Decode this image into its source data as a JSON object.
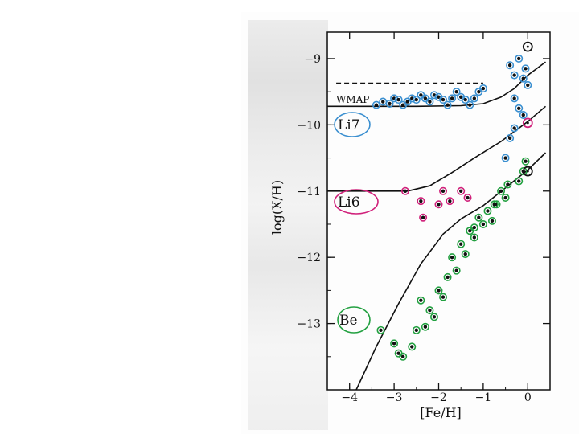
{
  "chart_data": {
    "type": "scatter",
    "ylabel": "log(X/H)",
    "xlabel": "[Fe/H]",
    "xlim": [
      -4.5,
      0.5
    ],
    "ylim": [
      -14.0,
      -8.6
    ],
    "x_ticks": [
      -4,
      -3,
      -2,
      -1,
      0
    ],
    "x_tick_labels": [
      "−4",
      "−3",
      "−2",
      "−1",
      "0"
    ],
    "y_ticks": [
      -9,
      -10,
      -11,
      -12,
      -13
    ],
    "y_tick_labels": [
      "−9",
      "−10",
      "−11",
      "−12",
      "−13"
    ],
    "annotations": {
      "wmap": "WMAP",
      "li7": "Li7",
      "li6": "Li6",
      "be": "Be"
    },
    "wmap_level": -9.37,
    "colors": {
      "li7": "#3a8fd0",
      "li6": "#d0207a",
      "be": "#22a040",
      "ink": "#111111"
    },
    "series": [
      {
        "name": "Li7",
        "points": [
          [
            -3.4,
            -9.7
          ],
          [
            -3.25,
            -9.65
          ],
          [
            -3.1,
            -9.68
          ],
          [
            -3.0,
            -9.6
          ],
          [
            -2.9,
            -9.62
          ],
          [
            -2.8,
            -9.7
          ],
          [
            -2.7,
            -9.65
          ],
          [
            -2.6,
            -9.6
          ],
          [
            -2.5,
            -9.62
          ],
          [
            -2.4,
            -9.55
          ],
          [
            -2.3,
            -9.6
          ],
          [
            -2.2,
            -9.65
          ],
          [
            -2.1,
            -9.55
          ],
          [
            -2.0,
            -9.58
          ],
          [
            -1.9,
            -9.62
          ],
          [
            -1.8,
            -9.7
          ],
          [
            -1.7,
            -9.6
          ],
          [
            -1.6,
            -9.5
          ],
          [
            -1.5,
            -9.58
          ],
          [
            -1.4,
            -9.62
          ],
          [
            -1.3,
            -9.7
          ],
          [
            -1.2,
            -9.6
          ],
          [
            -1.1,
            -9.5
          ],
          [
            -1.0,
            -9.45
          ],
          [
            -0.4,
            -9.1
          ],
          [
            -0.3,
            -9.25
          ],
          [
            -0.2,
            -9.0
          ],
          [
            -0.1,
            -9.3
          ],
          [
            -0.05,
            -9.15
          ],
          [
            0.0,
            -9.4
          ],
          [
            -0.3,
            -9.6
          ],
          [
            -0.2,
            -9.75
          ],
          [
            -0.1,
            -9.85
          ],
          [
            -0.4,
            -10.2
          ],
          [
            -0.5,
            -10.5
          ],
          [
            -0.3,
            -10.05
          ]
        ]
      },
      {
        "name": "Li6",
        "points": [
          [
            -2.75,
            -11.0
          ],
          [
            -2.4,
            -11.15
          ],
          [
            -2.35,
            -11.4
          ],
          [
            -2.0,
            -11.2
          ],
          [
            -1.9,
            -11.0
          ],
          [
            -1.75,
            -11.15
          ],
          [
            -1.5,
            -11.0
          ],
          [
            -1.35,
            -11.1
          ]
        ]
      },
      {
        "name": "Be",
        "points": [
          [
            -3.3,
            -13.1
          ],
          [
            -3.0,
            -13.3
          ],
          [
            -2.9,
            -13.45
          ],
          [
            -2.8,
            -13.5
          ],
          [
            -2.6,
            -13.35
          ],
          [
            -2.5,
            -13.1
          ],
          [
            -2.3,
            -13.05
          ],
          [
            -2.2,
            -12.8
          ],
          [
            -2.1,
            -12.9
          ],
          [
            -2.0,
            -12.5
          ],
          [
            -1.9,
            -12.6
          ],
          [
            -1.8,
            -12.3
          ],
          [
            -1.7,
            -12.0
          ],
          [
            -1.6,
            -12.2
          ],
          [
            -1.5,
            -11.8
          ],
          [
            -1.4,
            -11.95
          ],
          [
            -1.3,
            -11.6
          ],
          [
            -1.2,
            -11.7
          ],
          [
            -1.1,
            -11.4
          ],
          [
            -1.0,
            -11.5
          ],
          [
            -0.9,
            -11.3
          ],
          [
            -0.8,
            -11.45
          ],
          [
            -0.7,
            -11.2
          ],
          [
            -0.6,
            -11.0
          ],
          [
            -0.5,
            -11.1
          ],
          [
            -0.45,
            -10.9
          ],
          [
            -0.2,
            -10.85
          ],
          [
            -0.1,
            -10.7
          ],
          [
            -0.05,
            -10.55
          ],
          [
            -2.4,
            -12.65
          ],
          [
            -1.2,
            -11.55
          ],
          [
            -0.75,
            -11.2
          ]
        ]
      }
    ],
    "curves": [
      {
        "name": "Li7",
        "points": [
          [
            -4.6,
            -9.72
          ],
          [
            -3.5,
            -9.72
          ],
          [
            -2.5,
            -9.72
          ],
          [
            -1.5,
            -9.71
          ],
          [
            -1.0,
            -9.68
          ],
          [
            -0.6,
            -9.58
          ],
          [
            -0.3,
            -9.45
          ],
          [
            0.0,
            -9.25
          ],
          [
            0.4,
            -9.05
          ]
        ]
      },
      {
        "name": "Li6",
        "points": [
          [
            -4.6,
            -11.0
          ],
          [
            -3.5,
            -11.0
          ],
          [
            -2.7,
            -11.0
          ],
          [
            -2.2,
            -10.92
          ],
          [
            -1.7,
            -10.72
          ],
          [
            -1.2,
            -10.5
          ],
          [
            -0.6,
            -10.25
          ],
          [
            0.0,
            -9.95
          ],
          [
            0.4,
            -9.72
          ]
        ]
      },
      {
        "name": "Be",
        "points": [
          [
            -3.85,
            -14.0
          ],
          [
            -3.4,
            -13.35
          ],
          [
            -2.9,
            -12.7
          ],
          [
            -2.4,
            -12.1
          ],
          [
            -1.9,
            -11.65
          ],
          [
            -1.5,
            -11.42
          ],
          [
            -1.0,
            -11.22
          ],
          [
            -0.5,
            -10.95
          ],
          [
            0.0,
            -10.68
          ],
          [
            0.4,
            -10.42
          ]
        ]
      }
    ],
    "solar_markers": [
      {
        "x": 0.0,
        "y": -8.82,
        "color": "#111111"
      },
      {
        "x": 0.0,
        "y": -9.97,
        "color": "#d0207a"
      },
      {
        "x": 0.0,
        "y": -10.7,
        "color": "#111111"
      }
    ],
    "grid": false,
    "legend": "none"
  }
}
